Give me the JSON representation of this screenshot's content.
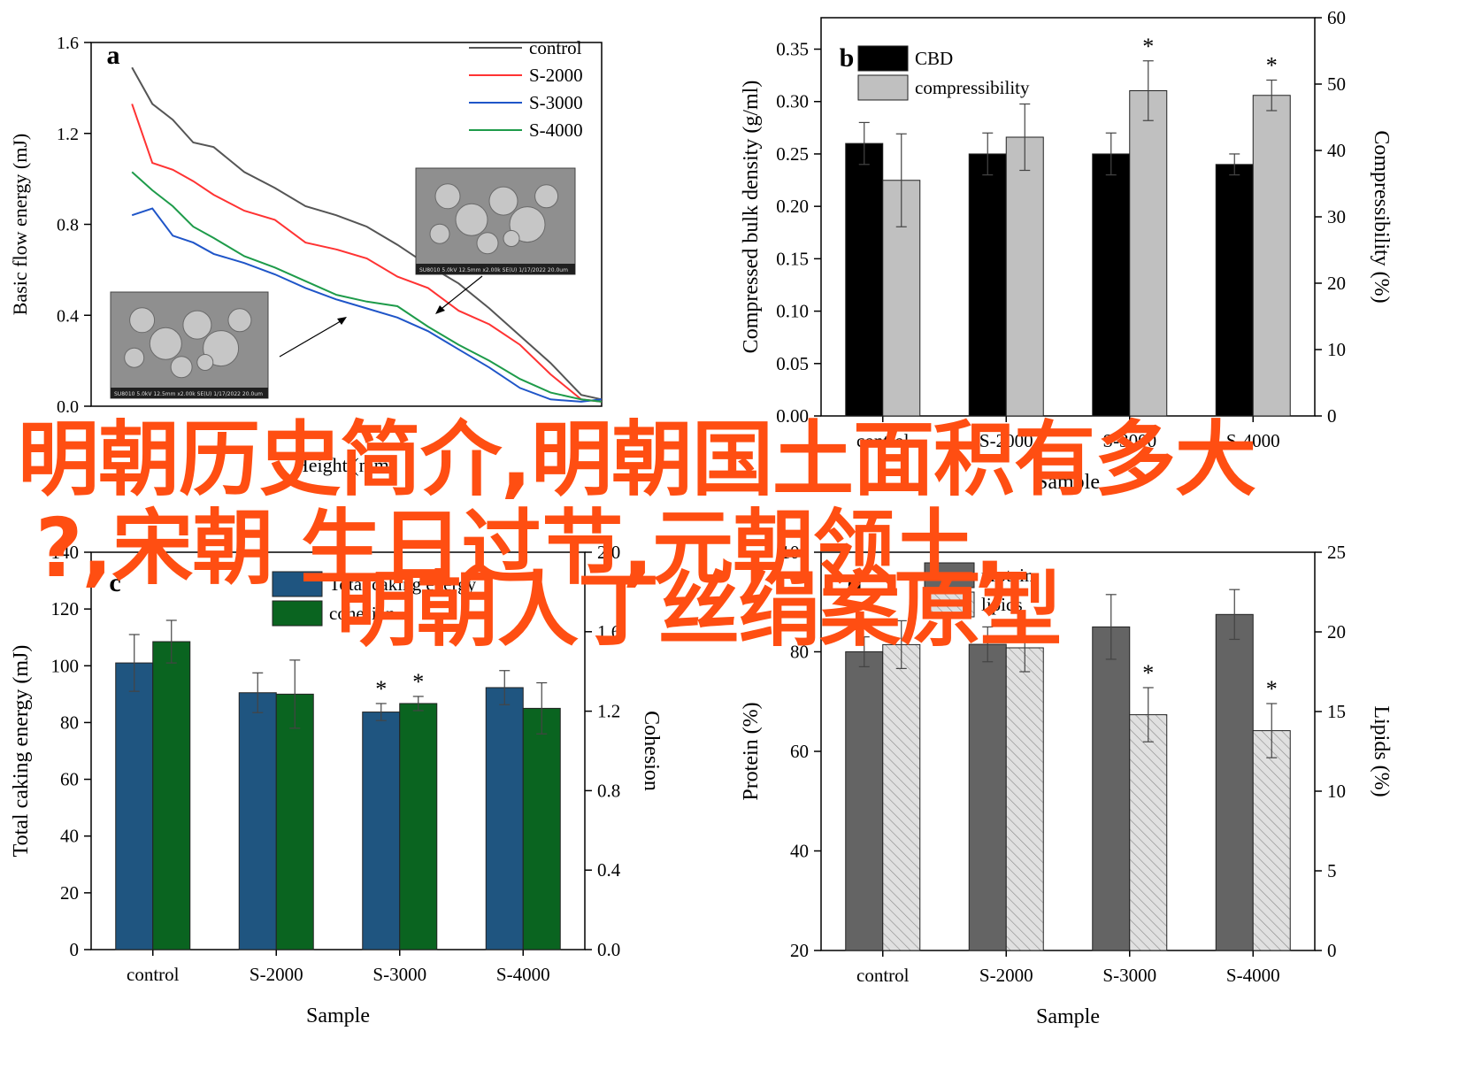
{
  "overlay": {
    "line1": "明朝历史简介,明朝国土面积有多大",
    "line2": "?,宋朝 生日过节,元朝领土,",
    "line3": "明朝人丁丝绢案原型"
  },
  "colors": {
    "overlay": "#ff4e12",
    "control": "#555555",
    "s2000": "#ff3333",
    "s3000": "#1f55c8",
    "s4000": "#1e9b4a",
    "cbd": "#000000",
    "compressibility": "#c0c0c0",
    "tce": "#1f5580",
    "cohesion": "#0a6420",
    "protein": "#646464",
    "lipids": "#e0e0e0"
  },
  "sem_images": [
    {
      "caption": "SU8010 5.0kV 12.5mm x2.00k SE(U) 1/17/2022 20.0um"
    },
    {
      "caption": "SU8010 5.0kV 12.5mm x2.00k SE(U) 1/17/2022 20.0um"
    }
  ],
  "chart_data": [
    {
      "panel": "a",
      "type": "line",
      "xlabel": "Height (mm)",
      "ylabel": "Basic flow energy (mJ)",
      "ylim": [
        0.0,
        1.6
      ],
      "xlim": [
        0,
        50
      ],
      "yticks": [
        "0.0",
        "0.4",
        "0.8",
        "1.2",
        "1.6"
      ],
      "legend_placement": "top-right",
      "series": [
        {
          "name": "control",
          "color": "#555555",
          "x": [
            4,
            6,
            8,
            10,
            12,
            15,
            18,
            21,
            24,
            27,
            30,
            33,
            36,
            39,
            42,
            45,
            48,
            50
          ],
          "values": [
            1.49,
            1.33,
            1.26,
            1.16,
            1.14,
            1.03,
            0.96,
            0.88,
            0.84,
            0.79,
            0.71,
            0.62,
            0.54,
            0.43,
            0.31,
            0.19,
            0.05,
            0.03
          ]
        },
        {
          "name": "S-2000",
          "color": "#ff3333",
          "x": [
            4,
            6,
            8,
            10,
            12,
            15,
            18,
            21,
            24,
            27,
            30,
            33,
            36,
            39,
            42,
            45,
            48,
            50
          ],
          "values": [
            1.33,
            1.07,
            1.04,
            0.99,
            0.93,
            0.86,
            0.82,
            0.72,
            0.69,
            0.65,
            0.57,
            0.52,
            0.42,
            0.36,
            0.27,
            0.14,
            0.03,
            0.02
          ]
        },
        {
          "name": "S-3000",
          "color": "#1f55c8",
          "x": [
            4,
            6,
            8,
            10,
            12,
            15,
            18,
            21,
            24,
            27,
            30,
            33,
            36,
            39,
            42,
            45,
            48,
            50
          ],
          "values": [
            0.84,
            0.87,
            0.75,
            0.72,
            0.67,
            0.63,
            0.58,
            0.52,
            0.47,
            0.43,
            0.39,
            0.33,
            0.25,
            0.17,
            0.08,
            0.03,
            0.02,
            0.03
          ]
        },
        {
          "name": "S-4000",
          "color": "#1e9b4a",
          "x": [
            4,
            6,
            8,
            10,
            12,
            15,
            18,
            21,
            24,
            27,
            30,
            33,
            36,
            39,
            42,
            45,
            48,
            50
          ],
          "values": [
            1.03,
            0.95,
            0.88,
            0.79,
            0.74,
            0.66,
            0.61,
            0.55,
            0.49,
            0.46,
            0.44,
            0.35,
            0.27,
            0.2,
            0.12,
            0.06,
            0.03,
            0.02
          ]
        }
      ]
    },
    {
      "panel": "b",
      "type": "bar",
      "xlabel": "Sample",
      "ylabel": "Compressed bulk density (g/ml)",
      "ylabel_right": "Compressibility (%)",
      "categories": [
        "control",
        "S-2000",
        "S-3000",
        "S-4000"
      ],
      "ylim": [
        0,
        0.38
      ],
      "ylim_right": [
        0,
        60
      ],
      "yticks": [
        "0.00",
        "0.05",
        "0.10",
        "0.15",
        "0.20",
        "0.25",
        "0.30",
        "0.35"
      ],
      "yticks_right": [
        "0",
        "10",
        "20",
        "30",
        "40",
        "50",
        "60"
      ],
      "legend_placement": "top-left",
      "series": [
        {
          "name": "CBD",
          "axis": "left",
          "color": "#000000",
          "values": [
            0.26,
            0.25,
            0.25,
            0.24
          ],
          "err": [
            0.02,
            0.02,
            0.02,
            0.01
          ],
          "sig": [
            "",
            "",
            "",
            ""
          ]
        },
        {
          "name": "compressibility",
          "axis": "right",
          "color": "#c0c0c0",
          "values": [
            35.5,
            42,
            49,
            48.3
          ],
          "err": [
            7,
            5,
            4.5,
            2.3
          ],
          "sig": [
            "",
            "",
            "*",
            "*"
          ]
        }
      ]
    },
    {
      "panel": "c",
      "type": "bar",
      "xlabel": "Sample",
      "ylabel": "Total caking energy (mJ)",
      "ylabel_right": "Cohesion",
      "categories": [
        "control",
        "S-2000",
        "S-3000",
        "S-4000"
      ],
      "ylim": [
        0,
        140
      ],
      "ylim_right": [
        0.0,
        2.0
      ],
      "yticks": [
        "0",
        "20",
        "40",
        "60",
        "80",
        "100",
        "120",
        "140"
      ],
      "yticks_right": [
        "0.0",
        "0.4",
        "0.8",
        "1.2",
        "1.6",
        "2.0"
      ],
      "legend_placement": "top-center",
      "series": [
        {
          "name": "Total caking energy",
          "axis": "left",
          "color": "#1f5580",
          "values": [
            101,
            90.5,
            83.7,
            92.3
          ],
          "err": [
            10,
            7,
            3,
            6
          ],
          "sig": [
            "",
            "",
            "*",
            ""
          ]
        },
        {
          "name": "cohesion",
          "axis": "left",
          "color": "#0a6420",
          "values": [
            108.5,
            90,
            86.7,
            85
          ],
          "err": [
            7.5,
            12,
            2.5,
            9
          ],
          "sig": [
            "",
            "",
            "*",
            ""
          ]
        }
      ]
    },
    {
      "panel": "d",
      "type": "bar",
      "xlabel": "Sample",
      "ylabel": "Protein (%)",
      "ylabel_right": "Lipids (%)",
      "categories": [
        "control",
        "S-2000",
        "S-3000",
        "S-4000"
      ],
      "ylim": [
        20,
        100
      ],
      "ylim_right": [
        0,
        25
      ],
      "yticks": [
        "20",
        "40",
        "60",
        "80",
        "100"
      ],
      "yticks_right": [
        "0",
        "5",
        "10",
        "15",
        "20",
        "25"
      ],
      "legend_placement": "top-left",
      "series": [
        {
          "name": "protein",
          "axis": "left",
          "color": "#646464",
          "values": [
            80,
            81.5,
            85,
            87.5
          ],
          "err": [
            3,
            3.5,
            6.5,
            5
          ],
          "sig": [
            "",
            "",
            "",
            ""
          ]
        },
        {
          "name": "lipids",
          "axis": "right",
          "color": "#e0e0e0",
          "values": [
            19.2,
            19,
            14.8,
            13.8
          ],
          "err": [
            1.5,
            1.5,
            1.7,
            1.7
          ],
          "sig": [
            "",
            "",
            "*",
            "*"
          ]
        }
      ]
    }
  ]
}
